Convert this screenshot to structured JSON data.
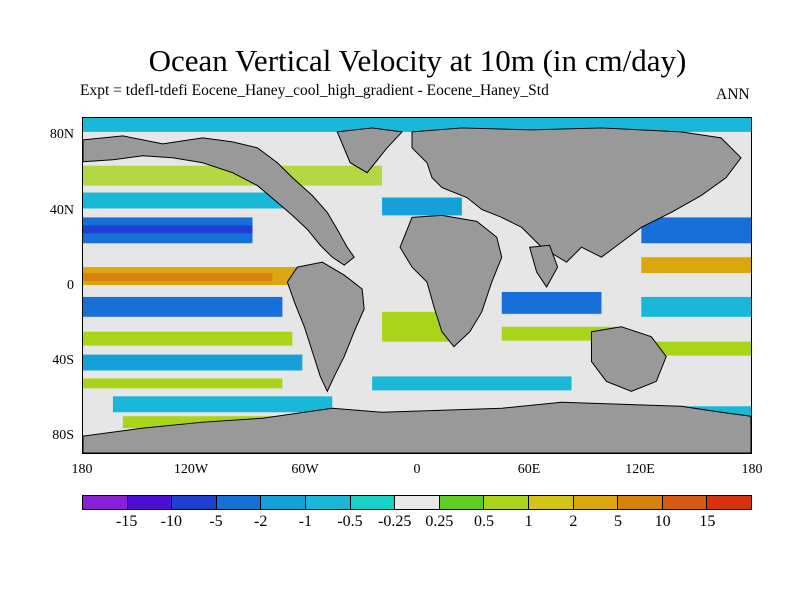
{
  "header": {
    "title": "Ocean Vertical Velocity at 10m (in cm/day)",
    "subtitle": "Expt = tdefl-tdefi  Eocene_Haney_cool_high_gradient - Eocene_Haney_Std",
    "season": "ANN"
  },
  "axes": {
    "y_ticks": [
      "80N",
      "40N",
      "0",
      "40S",
      "80S"
    ],
    "x_ticks": [
      "180",
      "120W",
      "60W",
      "0",
      "60E",
      "120E",
      "180"
    ]
  },
  "colorbar": {
    "colors": [
      "#8a1fd8",
      "#4a0fd0",
      "#1f3fd4",
      "#1770d8",
      "#15a0d8",
      "#1ab8d8",
      "#19d0c4",
      "#e8e8e8",
      "#5ecc22",
      "#a8d41a",
      "#d4c418",
      "#dca60e",
      "#d8820e",
      "#d85a14",
      "#d6320e"
    ],
    "labels": [
      "-15",
      "-10",
      "-5",
      "-2",
      "-1",
      "-0.5",
      "-0.25",
      "0.25",
      "0.5",
      "1",
      "2",
      "5",
      "10",
      "15"
    ]
  },
  "map": {
    "land_color": "#999999",
    "ocean_zero_color": "#e6e6e6"
  }
}
